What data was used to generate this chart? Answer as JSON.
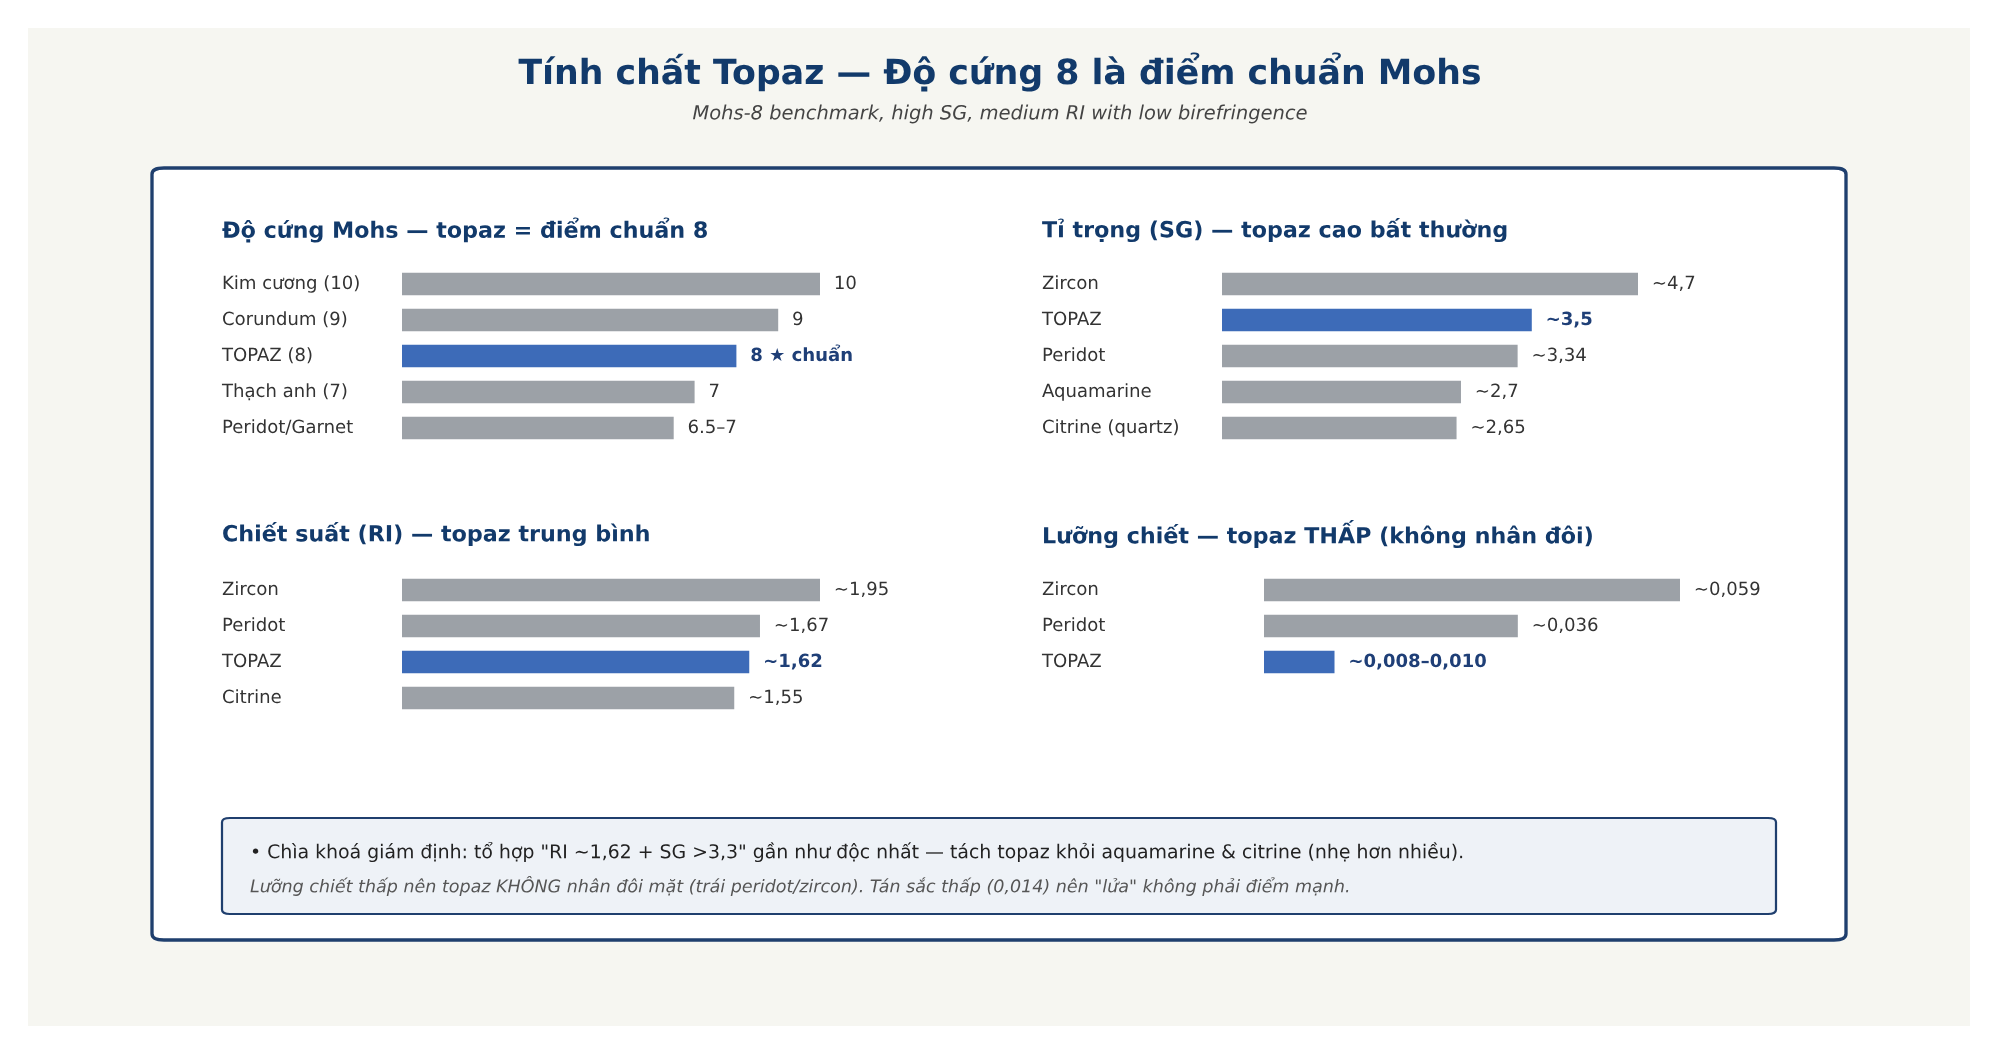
{
  "chart_data": [
    {
      "type": "bar",
      "orientation": "horizontal",
      "title": "Độ cứng Mohs — topaz = điểm chuẩn 8",
      "categories": [
        "Kim cương (10)",
        "Corundum (9)",
        "TOPAZ (8)",
        "Thạch anh (7)",
        "Peridot/Garnet"
      ],
      "values": [
        10,
        9,
        8,
        7,
        6.5
      ],
      "colors": [
        "#9ca1a7",
        "#9ca1a7",
        "#3d6bb8",
        "#9ca1a7",
        "#9ca1a7"
      ],
      "value_labels": [
        "10",
        "9",
        "8 ★ chuẩn",
        "7",
        "6.5–7"
      ]
    },
    {
      "type": "bar",
      "orientation": "horizontal",
      "title": "Tỉ trọng (SG) — topaz cao bất thường",
      "categories": [
        "Zircon",
        "TOPAZ",
        "Peridot",
        "Aquamarine",
        "Citrine (quartz)"
      ],
      "values": [
        4.7,
        3.5,
        3.34,
        2.7,
        2.65
      ],
      "colors": [
        "#9ca1a7",
        "#3d6bb8",
        "#9ca1a7",
        "#9ca1a7",
        "#9ca1a7"
      ],
      "value_labels": [
        "~4,7",
        "~3,5",
        "~3,34",
        "~2,7",
        "~2,65"
      ]
    },
    {
      "type": "bar",
      "orientation": "horizontal",
      "title": "Chiết suất (RI) — topaz trung bình",
      "categories": [
        "Zircon",
        "Peridot",
        "TOPAZ",
        "Citrine"
      ],
      "values": [
        1.95,
        1.67,
        1.62,
        1.55
      ],
      "colors": [
        "#9ca1a7",
        "#9ca1a7",
        "#3d6bb8",
        "#9ca1a7"
      ],
      "value_labels": [
        "~1,95",
        "~1,67",
        "~1,62",
        "~1,55"
      ]
    },
    {
      "type": "bar",
      "orientation": "horizontal",
      "title": "Lưỡng chiết — topaz THẤP (không nhân đôi)",
      "categories": [
        "Zircon",
        "Peridot",
        "TOPAZ"
      ],
      "values": [
        0.059,
        0.036,
        0.01
      ],
      "colors": [
        "#9ca1a7",
        "#9ca1a7",
        "#3d6bb8"
      ],
      "value_labels": [
        "~0,059",
        "~0,036",
        "~0,008–0,010"
      ]
    },
    {
      "type": "other",
      "title": "Tính chất Topaz — Độ cứng 8 là điểm chuẩn Mohs",
      "subtitle": "Mohs-8 benchmark, high SG, medium RI with low birefringence",
      "annotations": [
        "• Chìa khoá giám định: tổ hợp \"RI ~1,62 + SG >3,3\" gần như độc nhất — tách topaz khỏi aquamarine & citrine (nhẹ hơn nhiều).",
        "Lưỡng chiết thấp nên topaz KHÔNG nhân đôi mặt (trái peridot/zircon). Tán sắc thấp (0,014) nên \"lửa\" không phải điểm mạnh."
      ]
    }
  ]
}
